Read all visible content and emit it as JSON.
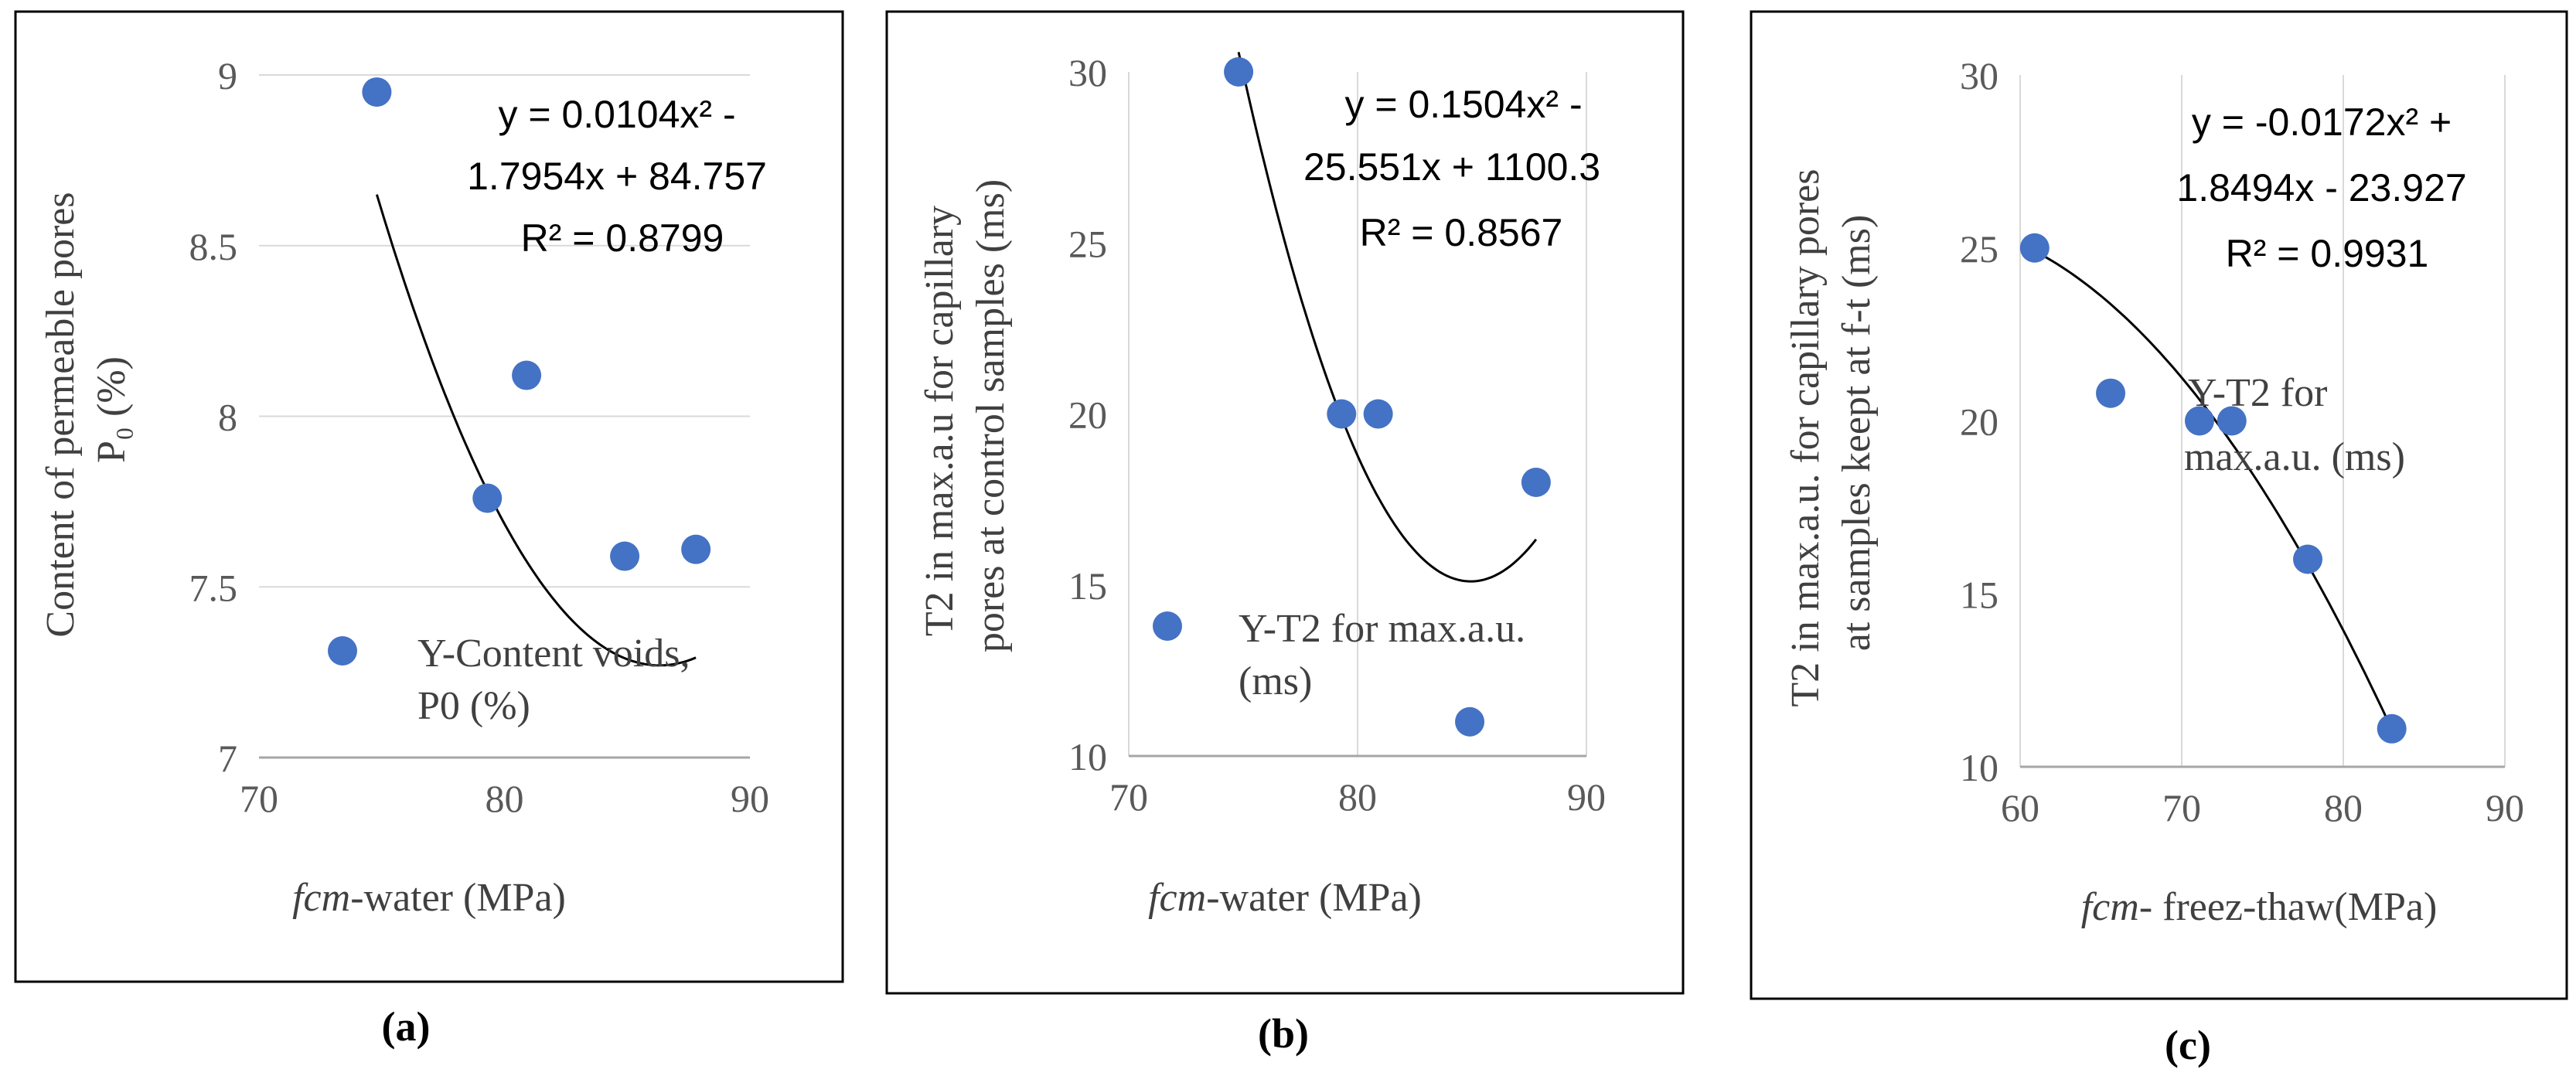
{
  "chart_data": [
    {
      "type": "scatter",
      "panel_label": "(a)",
      "xlabel_italic": "fcm",
      "xlabel_rest": "-water (MPa)",
      "ylabel_lines": [
        "Content of permeable pores",
        "P₀ (%)"
      ],
      "xlim": [
        70,
        90
      ],
      "ylim": [
        7,
        9
      ],
      "xticks": [
        70,
        80,
        90
      ],
      "yticks": [
        7,
        7.5,
        8,
        8.5,
        9
      ],
      "ytick_labels": [
        "7",
        "7.5",
        "8",
        "8.5",
        "9"
      ],
      "grid": "horizontal",
      "series": [
        {
          "name": "Y-Content voids, P0 (%)",
          "legend_lines": [
            "Y-Content voids,",
            "P0 (%)"
          ],
          "color": "#4472C4",
          "x": [
            74.8,
            79.3,
            80.9,
            84.9,
            87.8
          ],
          "y": [
            8.95,
            7.76,
            8.12,
            7.59,
            7.61
          ]
        }
      ],
      "trendline": {
        "type": "poly2",
        "coefficients": [
          0.0104,
          -1.7954,
          84.757
        ],
        "x_range": [
          74.8,
          87.8
        ],
        "equation_lines": [
          "y = 0.0104x² -",
          "1.7954x + 84.757",
          "R² = 0.8799"
        ]
      }
    },
    {
      "type": "scatter",
      "panel_label": "(b)",
      "xlabel_italic": "fcm",
      "xlabel_rest": "-water (MPa)",
      "ylabel_lines": [
        "T2 in max.a.u for capillary",
        "pores at control samples (ms)"
      ],
      "xlim": [
        70,
        90
      ],
      "ylim": [
        10,
        30
      ],
      "xticks": [
        70,
        80,
        90
      ],
      "yticks": [
        10,
        15,
        20,
        25,
        30
      ],
      "ytick_labels": [
        "10",
        "15",
        "20",
        "25",
        "30"
      ],
      "grid": "vertical",
      "series": [
        {
          "name": "Y-T2 for max.a.u. (ms)",
          "legend_lines": [
            "Y-T2 for max.a.u.",
            "(ms)"
          ],
          "color": "#4472C4",
          "x": [
            74.8,
            79.3,
            80.9,
            84.9,
            87.8
          ],
          "y": [
            30,
            20,
            20,
            11,
            18
          ]
        }
      ],
      "trendline": {
        "type": "poly2",
        "coefficients": [
          0.1504,
          -25.551,
          1100.3
        ],
        "x_range": [
          74.8,
          87.8
        ],
        "equation_lines": [
          "y = 0.1504x² -",
          "25.551x + 1100.3",
          "R² = 0.8567"
        ]
      }
    },
    {
      "type": "scatter",
      "panel_label": "(c)",
      "xlabel_italic": "fcm",
      "xlabel_rest": "- freez-thaw(MPa)",
      "ylabel_lines": [
        "T2 in max.a.u. for capillary pores",
        "at samples keept at f-t  (ms)"
      ],
      "xlim": [
        60,
        90
      ],
      "ylim": [
        10,
        30
      ],
      "xticks": [
        60,
        70,
        80,
        90
      ],
      "yticks": [
        10,
        15,
        20,
        25,
        30
      ],
      "ytick_labels": [
        "10",
        "15",
        "20",
        "25",
        "30"
      ],
      "grid": "vertical",
      "series": [
        {
          "name": "Y-T2 for max.a.u. (ms)",
          "legend_lines": [
            "Y-T2 for",
            "max.a.u. (ms)"
          ],
          "color": "#4472C4",
          "x": [
            60.9,
            65.6,
            71.1,
            73.1,
            77.8,
            83.0
          ],
          "y": [
            25,
            20.8,
            20,
            20,
            16,
            11.1
          ]
        }
      ],
      "trendline": {
        "type": "poly2",
        "coefficients": [
          -0.0172,
          1.8494,
          -23.927
        ],
        "x_range": [
          60.9,
          83.0
        ],
        "equation_lines": [
          "y = -0.0172x² +",
          "1.8494x - 23.927",
          "R² = 0.9931"
        ]
      }
    }
  ]
}
